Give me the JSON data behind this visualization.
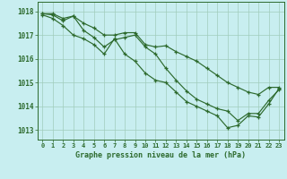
{
  "xlabel": "Graphe pression niveau de la mer (hPa)",
  "x": [
    0,
    1,
    2,
    3,
    4,
    5,
    6,
    7,
    8,
    9,
    10,
    11,
    12,
    13,
    14,
    15,
    16,
    17,
    18,
    19,
    20,
    21,
    22,
    23
  ],
  "line1": [
    1017.9,
    1017.9,
    1017.7,
    1017.8,
    1017.5,
    1017.3,
    1017.0,
    1017.0,
    1017.1,
    1017.1,
    1016.6,
    1016.5,
    1016.55,
    1016.3,
    1016.1,
    1015.9,
    1015.6,
    1015.3,
    1015.0,
    1014.8,
    1014.6,
    1014.5,
    1014.8,
    1014.8
  ],
  "line2": [
    1017.9,
    1017.85,
    1017.6,
    1017.8,
    1017.2,
    1016.9,
    1016.5,
    1016.8,
    1016.9,
    1017.0,
    1016.5,
    1016.2,
    1015.6,
    1015.1,
    1014.65,
    1014.3,
    1014.1,
    1013.9,
    1013.8,
    1013.4,
    1013.7,
    1013.7,
    1014.25,
    1014.7
  ],
  "line3": [
    1017.85,
    1017.7,
    1017.4,
    1017.0,
    1016.85,
    1016.6,
    1016.2,
    1016.85,
    1016.2,
    1015.9,
    1015.4,
    1015.1,
    1015.0,
    1014.6,
    1014.2,
    1014.0,
    1013.8,
    1013.6,
    1013.1,
    1013.2,
    1013.6,
    1013.55,
    1014.1,
    1014.75
  ],
  "line_color": "#2d6a2d",
  "bg_color": "#c8eef0",
  "grid_color": "#a0ccbb",
  "ylim": [
    1012.6,
    1018.4
  ],
  "yticks": [
    1013,
    1014,
    1015,
    1016,
    1017,
    1018
  ],
  "figsize": [
    3.2,
    2.0
  ],
  "dpi": 100
}
